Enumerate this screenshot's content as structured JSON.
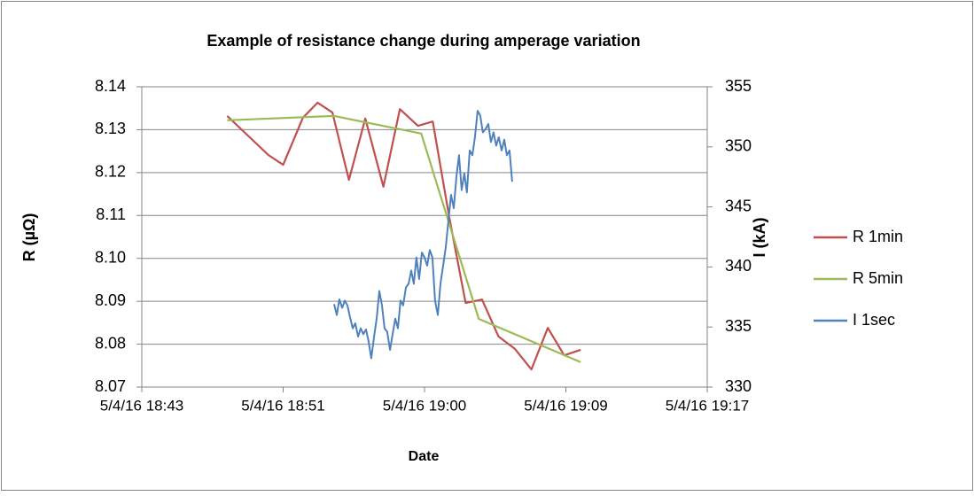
{
  "chart_data": {
    "type": "line",
    "title": "Example of resistance change during amperage variation",
    "x_label": "Date",
    "y_label": "R (µΩ)",
    "y2_label": "I (kA)",
    "xlim": [
      1122.8,
      1157.2
    ],
    "xticks": [
      {
        "value": 1122.8,
        "label": "5/4/16 18:43"
      },
      {
        "value": 1131.4,
        "label": "5/4/16 18:51"
      },
      {
        "value": 1140,
        "label": "5/4/16 19:00"
      },
      {
        "value": 1148.6,
        "label": "5/4/16 19:09"
      },
      {
        "value": 1157.2,
        "label": "5/4/16 19:17"
      }
    ],
    "ylim": [
      8.07,
      8.14
    ],
    "yticks": [
      8.07,
      8.08,
      8.09,
      {
        "value": 8.1,
        "label": "8.10"
      },
      8.11,
      8.12,
      8.13,
      8.14
    ],
    "y2lim": [
      330,
      355
    ],
    "y2ticks": [
      330,
      335,
      340,
      345,
      350,
      355
    ],
    "grid": true,
    "legend": "right",
    "series": [
      {
        "name": "R 1min",
        "color": "#c0504d",
        "axis": "y",
        "x": [
          1128.0,
          1130.5,
          1131.4,
          1132.6,
          1133.5,
          1134.4,
          1135.4,
          1136.4,
          1137.5,
          1138.5,
          1139.6,
          1140.5,
          1141.5,
          1142.5,
          1143.5,
          1144.5,
          1145.5,
          1146.5,
          1147.5,
          1148.5,
          1149.5
        ],
        "values": [
          8.1332,
          8.1241,
          8.1218,
          8.1328,
          8.1363,
          8.134,
          8.1183,
          8.1326,
          8.1167,
          8.1348,
          8.1309,
          8.1319,
          8.1097,
          8.0896,
          8.0904,
          8.0818,
          8.0789,
          8.0741,
          8.0838,
          8.0774,
          8.0787
        ]
      },
      {
        "name": "R 5min",
        "color": "#9bbb59",
        "axis": "y",
        "x": [
          1128.0,
          1134.5,
          1139.8,
          1143.3,
          1149.5
        ],
        "values": [
          8.1322,
          8.1332,
          8.1291,
          8.0859,
          8.0758
        ]
      },
      {
        "name": "I 1sec",
        "color": "#4f81bd",
        "axis": "y2",
        "x": [
          1134.5,
          1134.66,
          1134.82,
          1134.99,
          1135.15,
          1135.31,
          1135.47,
          1135.63,
          1135.79,
          1135.96,
          1136.12,
          1136.28,
          1136.44,
          1136.6,
          1136.76,
          1136.93,
          1137.09,
          1137.25,
          1137.41,
          1137.57,
          1137.73,
          1137.9,
          1138.06,
          1138.22,
          1138.38,
          1138.54,
          1138.7,
          1138.87,
          1139.03,
          1139.19,
          1139.35,
          1139.51,
          1139.67,
          1139.84,
          1140.0,
          1140.16,
          1140.32,
          1140.48,
          1140.64,
          1140.81,
          1140.97,
          1141.13,
          1141.29,
          1141.45,
          1141.61,
          1141.78,
          1141.94,
          1142.1,
          1142.26,
          1142.42,
          1142.58,
          1142.75,
          1142.91,
          1143.07,
          1143.23,
          1143.39,
          1143.55,
          1143.72,
          1143.88,
          1144.04,
          1144.2,
          1144.36,
          1144.52,
          1144.69,
          1144.85,
          1145.01,
          1145.17,
          1145.33
        ],
        "values": [
          336.9,
          336.0,
          337.3,
          336.6,
          337.2,
          336.8,
          335.8,
          334.9,
          335.3,
          334.2,
          334.9,
          334.4,
          334.8,
          333.8,
          332.4,
          334.2,
          335.7,
          338.0,
          336.8,
          334.9,
          334.6,
          333.1,
          334.4,
          335.7,
          334.9,
          337.2,
          336.8,
          338.3,
          338.6,
          339.7,
          338.6,
          340.8,
          339.0,
          341.2,
          340.8,
          340.1,
          341.4,
          340.8,
          337.2,
          336.0,
          338.6,
          340.1,
          341.6,
          343.8,
          346.0,
          344.9,
          347.5,
          349.3,
          346.4,
          347.8,
          346.2,
          349.7,
          349.3,
          350.8,
          353.0,
          352.6,
          351.2,
          351.5,
          351.9,
          350.4,
          351.2,
          350.1,
          350.8,
          349.7,
          350.6,
          349.3,
          349.7,
          347.1
        ]
      }
    ]
  }
}
